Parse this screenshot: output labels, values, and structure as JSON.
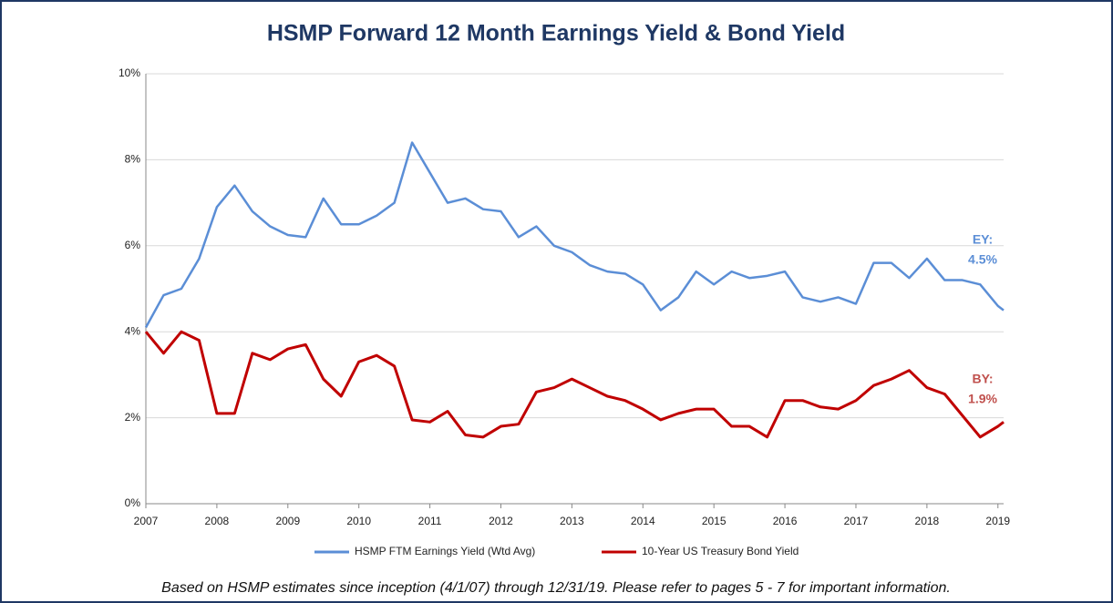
{
  "chart_data": {
    "type": "line",
    "title": "HSMP Forward 12 Month Earnings Yield & Bond Yield",
    "note": "Based on HSMP estimates since inception (4/1/07) through 12/31/19.  Please refer to pages 5 - 7 for important information.",
    "x": [
      2007,
      2007.25,
      2007.5,
      2007.75,
      2008,
      2008.25,
      2008.5,
      2008.75,
      2009,
      2009.25,
      2009.5,
      2009.75,
      2010,
      2010.25,
      2010.5,
      2010.75,
      2011,
      2011.25,
      2011.5,
      2011.75,
      2012,
      2012.25,
      2012.5,
      2012.75,
      2013,
      2013.25,
      2013.5,
      2013.75,
      2014,
      2014.25,
      2014.5,
      2014.75,
      2015,
      2015.25,
      2015.5,
      2015.75,
      2016,
      2016.25,
      2016.5,
      2016.75,
      2017,
      2017.25,
      2017.5,
      2017.75,
      2018,
      2018.25,
      2018.5,
      2018.75,
      2019,
      2019.08
    ],
    "series": [
      {
        "name": "HSMP FTM Earnings Yield (Wtd Avg)",
        "color": "#5b8ed6",
        "values": [
          4.1,
          4.85,
          5.0,
          5.7,
          6.9,
          7.4,
          6.8,
          6.45,
          6.25,
          6.2,
          7.1,
          6.5,
          6.5,
          6.7,
          7.0,
          8.4,
          7.7,
          7.0,
          7.1,
          6.85,
          6.8,
          6.2,
          6.45,
          6.0,
          5.85,
          5.55,
          5.4,
          5.35,
          5.1,
          4.5,
          4.8,
          5.4,
          5.1,
          5.4,
          5.25,
          5.3,
          5.4,
          4.8,
          4.7,
          4.8,
          4.65,
          5.6,
          5.6,
          5.25,
          5.7,
          5.2,
          5.2,
          5.1,
          4.6,
          4.5
        ]
      },
      {
        "name": "10-Year US Treasury Bond Yield",
        "color": "#c00000",
        "values": [
          4.0,
          3.5,
          4.0,
          3.8,
          2.1,
          2.1,
          3.5,
          3.35,
          3.6,
          3.7,
          2.9,
          2.5,
          3.3,
          3.45,
          3.2,
          1.95,
          1.9,
          2.15,
          1.6,
          1.55,
          1.8,
          1.85,
          2.6,
          2.7,
          2.9,
          2.7,
          2.5,
          2.4,
          2.2,
          1.95,
          2.1,
          2.2,
          2.2,
          1.8,
          1.8,
          1.55,
          2.4,
          2.4,
          2.25,
          2.2,
          2.4,
          2.75,
          2.9,
          3.1,
          2.7,
          2.55,
          2.05,
          1.55,
          1.8,
          1.9
        ]
      }
    ],
    "annotations": [
      {
        "text": "EY:",
        "color": "#5b8ed6"
      },
      {
        "text": "4.5%",
        "color": "#5b8ed6"
      },
      {
        "text": "BY:",
        "color": "#c0504d"
      },
      {
        "text": "1.9%",
        "color": "#c0504d"
      }
    ],
    "xlim": [
      2007,
      2019.08
    ],
    "xticks": [
      2007,
      2008,
      2009,
      2010,
      2011,
      2012,
      2013,
      2014,
      2015,
      2016,
      2017,
      2018,
      2019
    ],
    "ylim": [
      0,
      10
    ],
    "yticks": [
      {
        "value": 0,
        "label": "0%"
      },
      {
        "value": 2,
        "label": "2%"
      },
      {
        "value": 4,
        "label": "4%"
      },
      {
        "value": 6,
        "label": "6%"
      },
      {
        "value": 8,
        "label": "8%"
      },
      {
        "value": 10,
        "label": "10%"
      }
    ],
    "grid": true,
    "legend": "bottom"
  }
}
